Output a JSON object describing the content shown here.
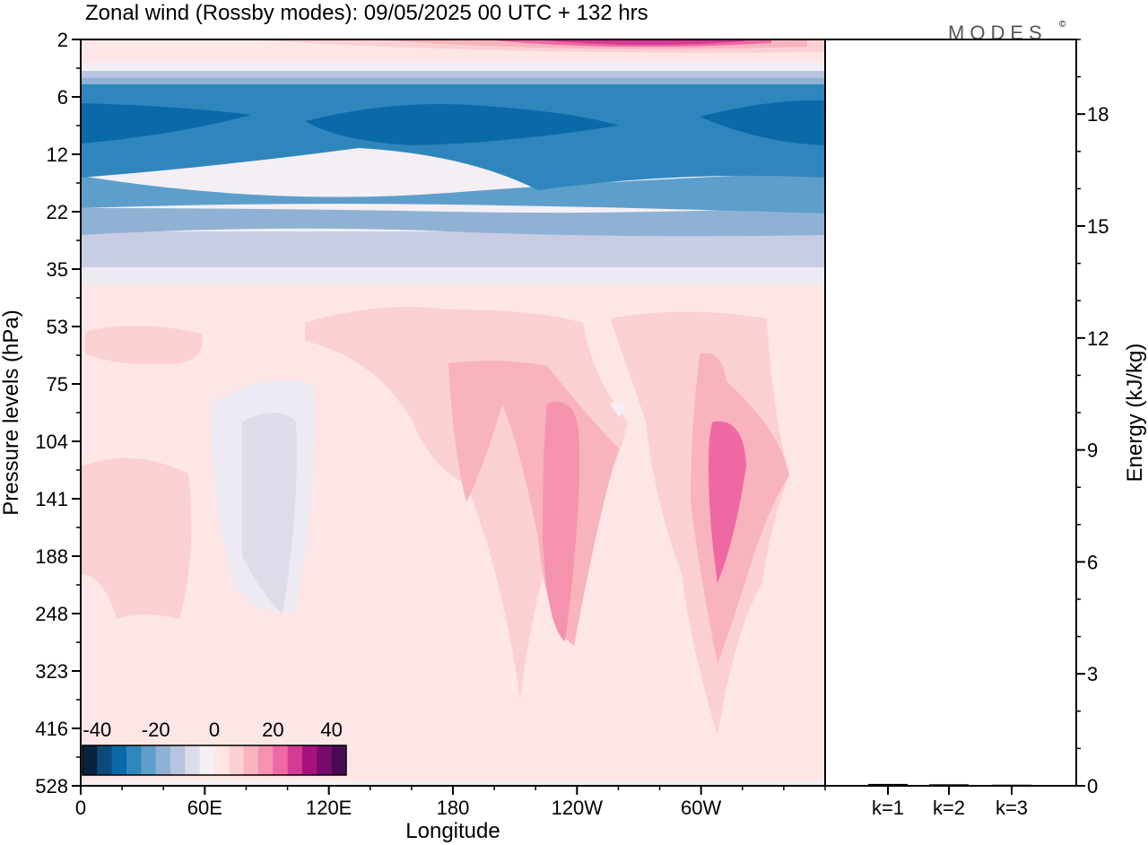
{
  "header": {
    "title": "Zonal wind (Rossby modes):  09/05/2025  00 UTC  + 132 hrs",
    "logo": "MODES",
    "logo_mark": "©"
  },
  "chart_data": [
    {
      "type": "heatmap",
      "title": "Zonal wind (Rossby modes):  09/05/2025  00 UTC  + 132 hrs",
      "xlabel": "Longitude",
      "ylabel": "Pressure levels (hPa)",
      "x_ticks": [
        "0",
        "60E",
        "120E",
        "180",
        "120W",
        "60W"
      ],
      "x_tick_values": [
        0,
        60,
        120,
        180,
        240,
        300
      ],
      "xlim": [
        0,
        360
      ],
      "y_ticks": [
        "2",
        "6",
        "12",
        "22",
        "35",
        "53",
        "75",
        "104",
        "141",
        "188",
        "248",
        "323",
        "416",
        "528"
      ],
      "y_scale": "model levels (inverted, top = 2 hPa)",
      "colorbar": {
        "ticks": [
          "-40",
          "-20",
          "0",
          "20",
          "40"
        ],
        "tick_values": [
          -40,
          -20,
          0,
          20,
          40
        ],
        "colors": [
          "#08233f",
          "#0d4a7a",
          "#0a6aa8",
          "#2f86bd",
          "#5d9ecb",
          "#8fb2d4",
          "#b7c4e0",
          "#dddde9",
          "#f4eff5",
          "#fde7e6",
          "#fbd0d3",
          "#f8b3bc",
          "#f592ae",
          "#ee69a3",
          "#d53b95",
          "#a8127f",
          "#780b6d",
          "#4a0b55"
        ],
        "placement": "bottom-left inside plot"
      },
      "field_levels": [
        {
          "level": "2",
          "zonal_mean": 20,
          "max": 35,
          "max_lon": 220
        },
        {
          "level": "6",
          "zonal_mean": -22,
          "min": -25
        },
        {
          "level": "12",
          "zonal_mean": -30,
          "min": -35
        },
        {
          "level": "22",
          "zonal_mean": -18
        },
        {
          "level": "35",
          "zonal_mean": -6
        },
        {
          "level": "53",
          "zonal_mean": 2
        },
        {
          "level": "104",
          "max": 18,
          "max_lon": 230
        },
        {
          "level": "141",
          "max": 18,
          "max_lon": 310
        },
        {
          "level": "528",
          "zonal_mean": 0
        }
      ]
    },
    {
      "type": "bar",
      "ylabel": "Energy (kJ/kg)",
      "categories": [
        "k=1",
        "k=2",
        "k=3"
      ],
      "values": [
        0.05,
        0.04,
        0.03
      ],
      "y_ticks": [
        "0",
        "3",
        "6",
        "9",
        "12",
        "15",
        "18"
      ],
      "ylim": [
        0,
        20
      ]
    }
  ]
}
